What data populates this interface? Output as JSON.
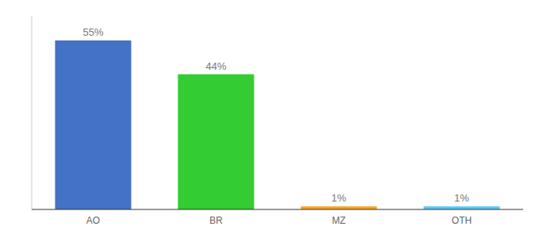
{
  "chart_data": {
    "type": "bar",
    "categories": [
      "AO",
      "BR",
      "MZ",
      "OTH"
    ],
    "values": [
      55,
      44,
      1,
      1
    ],
    "value_labels": [
      "55%",
      "44%",
      "1%",
      "1%"
    ],
    "data_labels": true,
    "colors": [
      "#4472c4",
      "#33cc33",
      "#f5a623",
      "#5bc8f5"
    ],
    "ylim": [
      0,
      63
    ],
    "tick_labels": "x",
    "grid": false
  }
}
